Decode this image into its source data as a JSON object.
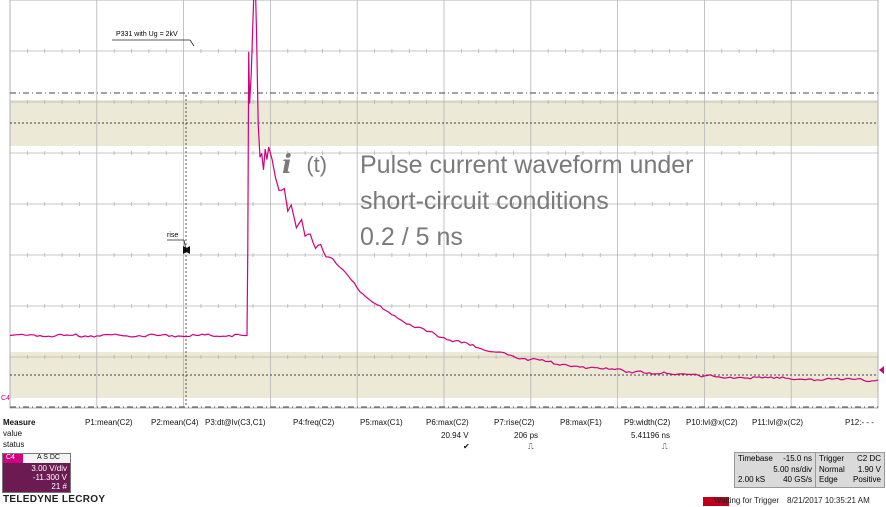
{
  "colors": {
    "trace": "#d0007f",
    "band_fill": "#ece9d6",
    "grid": "#9a9a9a",
    "caption_text": "#7a7a7a"
  },
  "chart_data": {
    "type": "line",
    "series": [
      {
        "x": [
          -15.0,
          -1.35,
          -1.3,
          -1.25,
          -1.2,
          -1.1,
          -0.9,
          -0.8,
          -0.7,
          -0.6,
          -0.5,
          -0.4,
          -0.3,
          -0.2,
          -0.1,
          0.1,
          0.3,
          0.5,
          0.8,
          1.0,
          1.2,
          1.5,
          1.8,
          2.0,
          2.3,
          2.6,
          2.9,
          3.2,
          3.6,
          4.0,
          5.0,
          6.0,
          7.0,
          8.0,
          9.0,
          10.0,
          11.0,
          12.0,
          13.0,
          14.0,
          15.0,
          17.0,
          19.0,
          21.0,
          23.0,
          25.0,
          27.0,
          29.0,
          31.0,
          33.0,
          35.0
        ],
        "y": [
          -0.2,
          -0.2,
          4.0,
          13.5,
          11.0,
          12.5,
          17.8,
          14.5,
          10.0,
          8.4,
          8.6,
          7.8,
          8.8,
          8.3,
          8.9,
          8.3,
          7.4,
          6.8,
          6.9,
          5.8,
          6.1,
          5.0,
          5.4,
          4.6,
          4.7,
          4.0,
          4.2,
          3.6,
          3.5,
          3.1,
          2.1,
          1.35,
          0.8,
          0.35,
          0.0,
          -0.3,
          -0.55,
          -0.8,
          -1.0,
          -1.2,
          -1.35,
          -1.6,
          -1.8,
          -1.95,
          -2.05,
          -2.15,
          -2.22,
          -2.27,
          -2.3,
          -2.33,
          -2.35
        ]
      }
    ],
    "xlim": [
      -15.0,
      35.0
    ],
    "ylim": [
      -3.7,
      16.0
    ],
    "x_units": "ns",
    "y_units": "V",
    "grid": true
  },
  "annotations": {
    "peak_label": "P331 with Ug = 2kV",
    "rise_label": "rise"
  },
  "overlay": {
    "italic_i": "i",
    "t_label": "(t)",
    "line1": "Pulse current waveform under",
    "line2": "short-circuit conditions",
    "line3": "0.2 / 5 ns"
  },
  "measure": {
    "header": "Measure",
    "row_value": "value",
    "row_status": "status",
    "params": [
      {
        "label": "P1:mean(C2)",
        "value": "",
        "status": ""
      },
      {
        "label": "P2:mean(C4)",
        "value": "",
        "status": ""
      },
      {
        "label": "P3:dt@lv(C3,C1)",
        "value": "",
        "status": ""
      },
      {
        "label": "P4:freq(C2)",
        "value": "",
        "status": ""
      },
      {
        "label": "P5:max(C1)",
        "value": "",
        "status": ""
      },
      {
        "label": "P6:max(C2)",
        "value": "20.94 V",
        "status": "✔"
      },
      {
        "label": "P7:rise(C2)",
        "value": "206 ps",
        "status": "⎍"
      },
      {
        "label": "P8:max(F1)",
        "value": "",
        "status": ""
      },
      {
        "label": "P9:width(C2)",
        "value": "5.41196 ns",
        "status": "⎍"
      },
      {
        "label": "P10:lvl@x(C2)",
        "value": "",
        "status": ""
      },
      {
        "label": "P11:lvl@x(C2)",
        "value": "",
        "status": ""
      },
      {
        "label": "P12:- - -",
        "value": "",
        "status": ""
      }
    ]
  },
  "channel": {
    "name": "C4",
    "badges": "A S DC",
    "vdiv": "3.00 V/div",
    "offset": "-11.300 V",
    "sweeps": "21 #"
  },
  "brand": "TELEDYNE LECROY",
  "timebase": {
    "label": "Timebase",
    "delay": "-15.0 ns",
    "tdiv": "5.00 ns/div",
    "samples": "2.00 kS",
    "rate": "40 GS/s"
  },
  "trigger": {
    "label": "Trigger",
    "channel": "C2 DC",
    "mode": "Normal",
    "level": "1.90 V",
    "type": "Edge",
    "slope": "Positive"
  },
  "status": {
    "text": "Waiting for Trigger",
    "datetime": "8/21/2017 10:35:21 AM"
  }
}
